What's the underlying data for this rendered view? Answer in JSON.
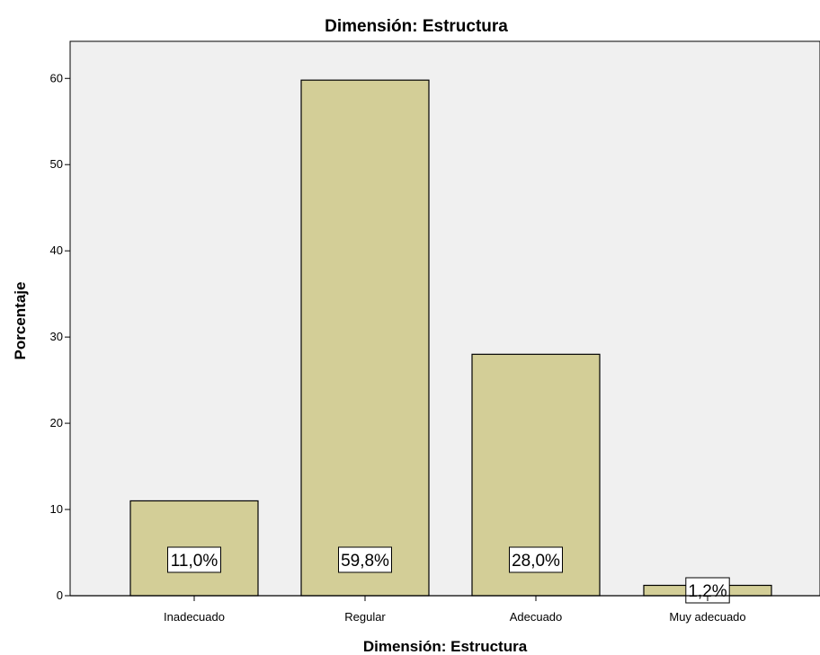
{
  "chart_data": {
    "type": "bar",
    "title": "Dimensión: Estructura",
    "xlabel": "Dimensión: Estructura",
    "ylabel": "Porcentaje",
    "categories": [
      "Inadecuado",
      "Regular",
      "Adecuado",
      "Muy adecuado"
    ],
    "values": [
      11.0,
      59.8,
      28.0,
      1.2
    ],
    "data_labels": [
      "11,0%",
      "59,8%",
      "28,0%",
      "1,2%"
    ],
    "y_ticks": [
      0,
      10,
      20,
      30,
      40,
      50,
      60
    ],
    "ylim": [
      0,
      64.3
    ],
    "grid": false,
    "colors": {
      "bar_fill": "#d3ce97",
      "bar_stroke": "#000000",
      "plot_background": "#f0f0f0",
      "label_box": "#ffffff"
    }
  }
}
